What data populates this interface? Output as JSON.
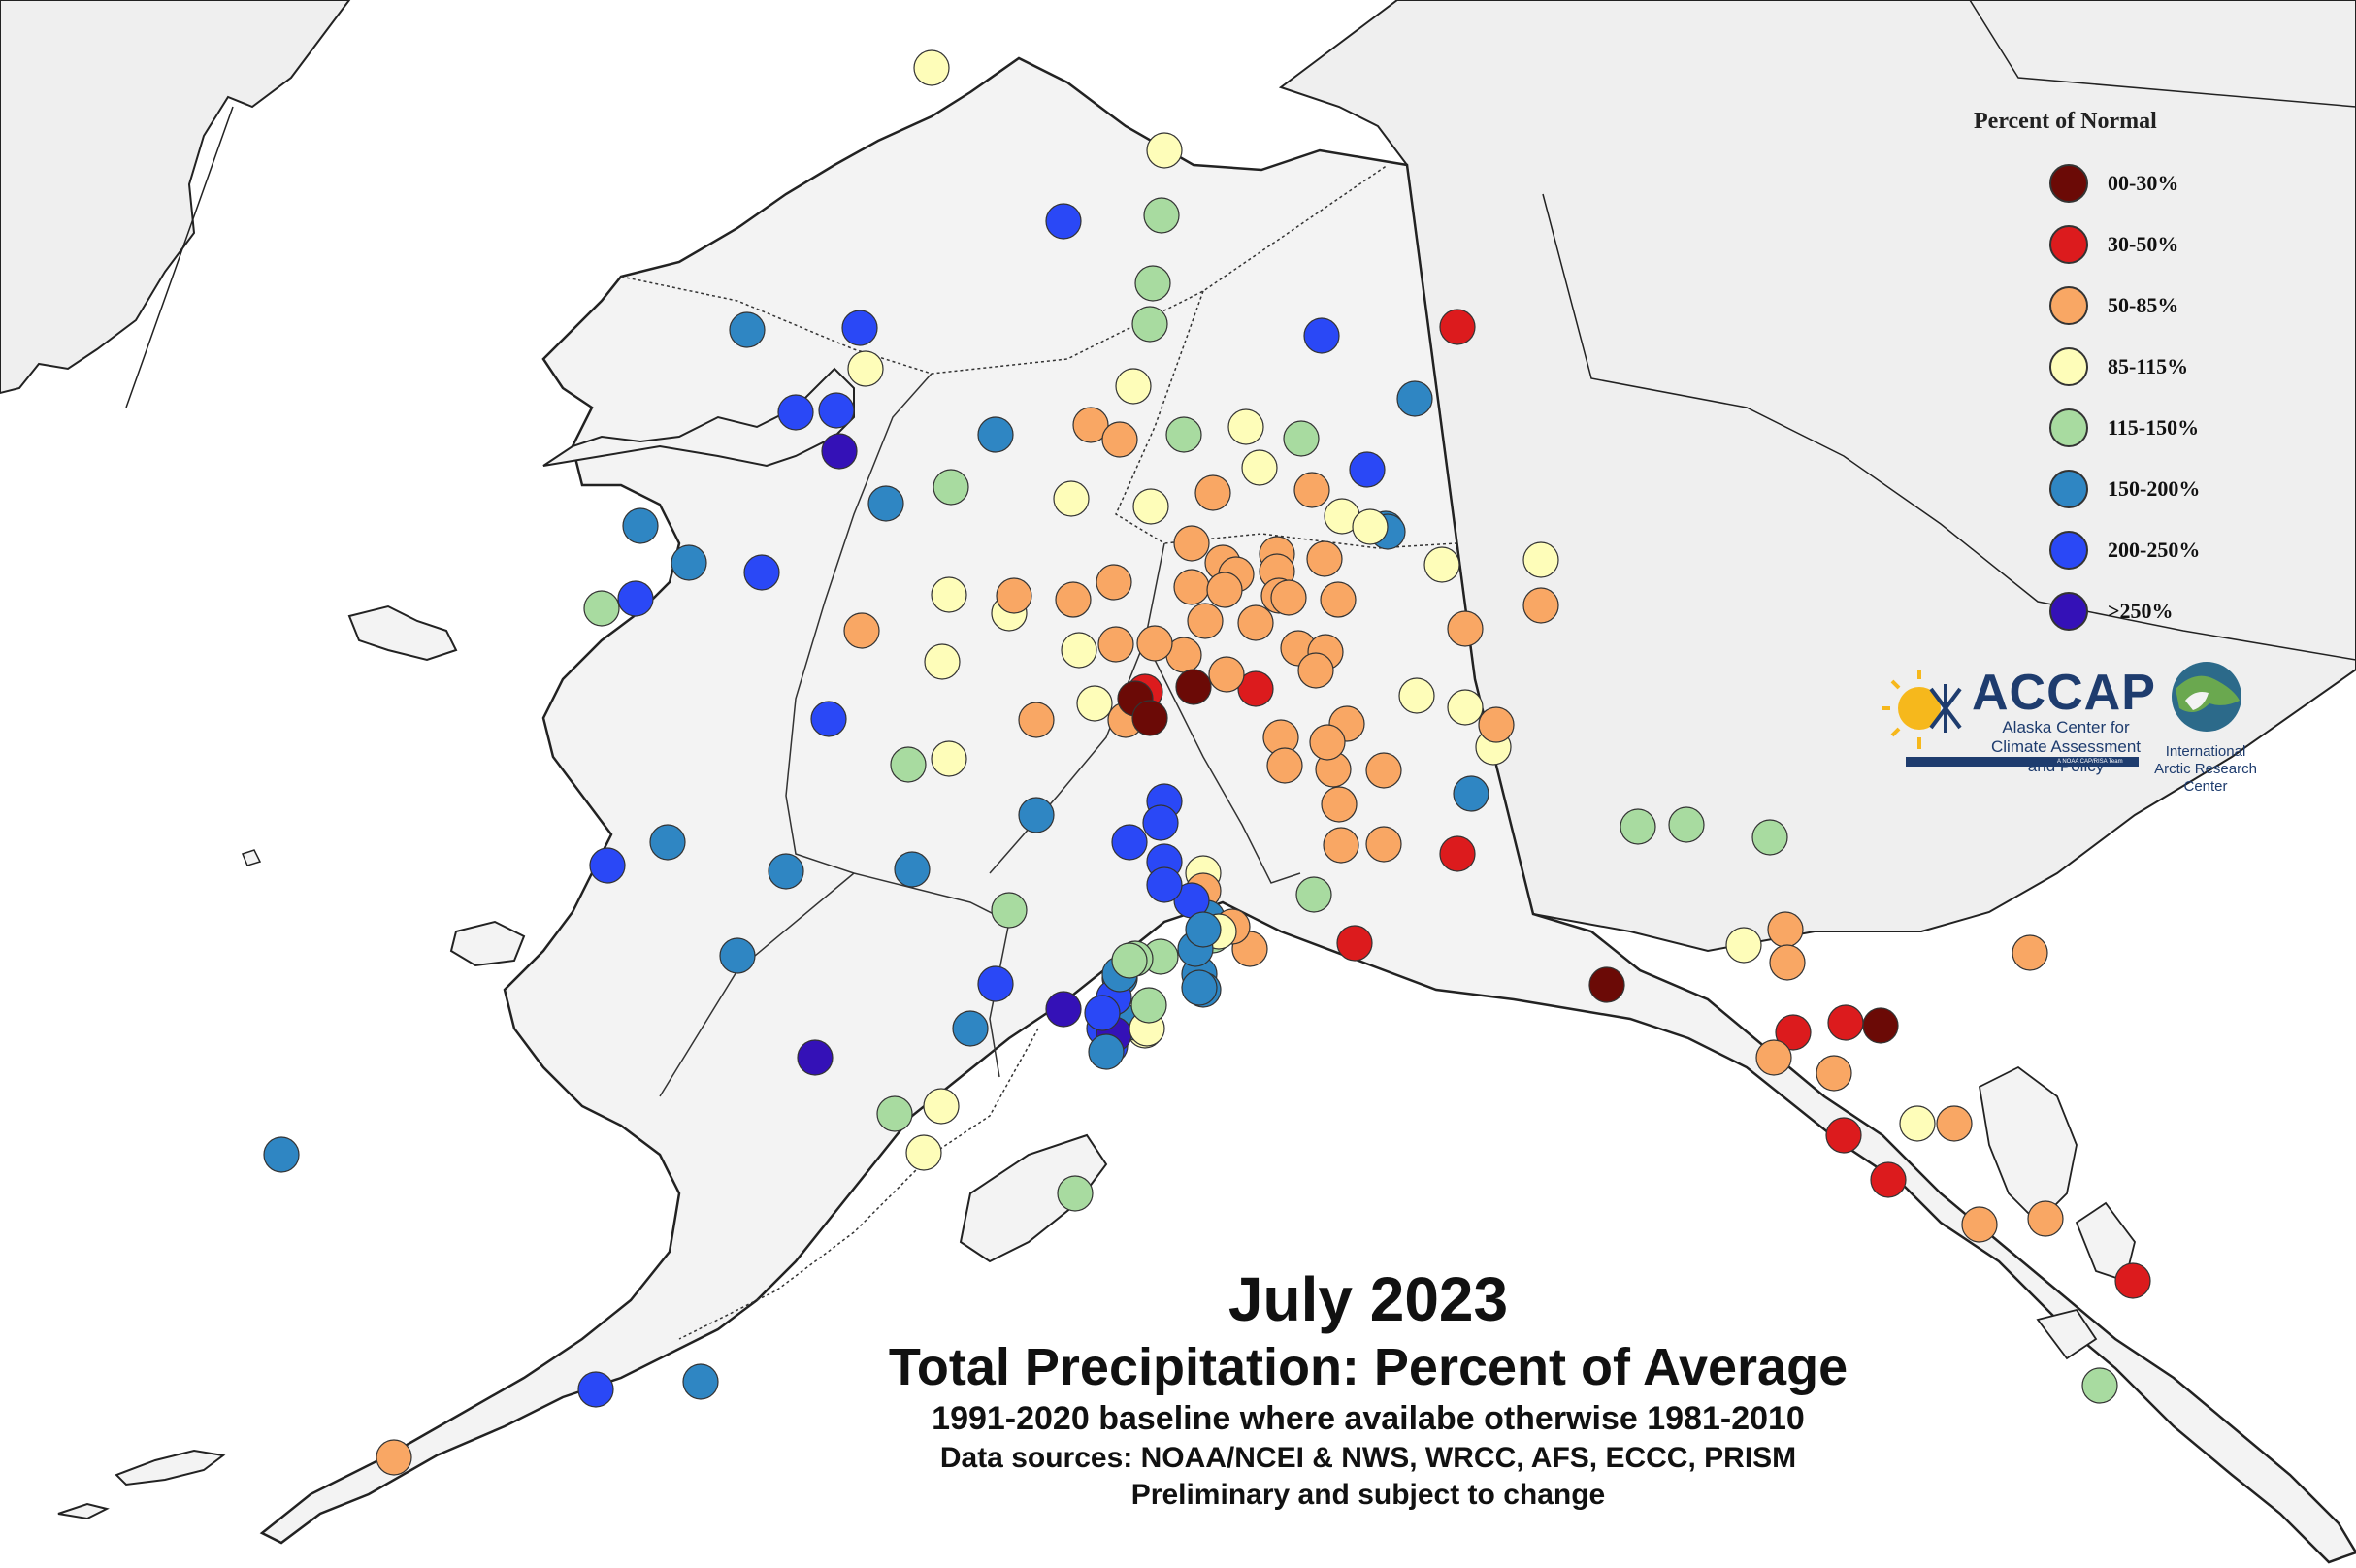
{
  "title": {
    "line1": "July 2023",
    "line2": "Total Precipitation: Percent of Average",
    "line3": "1991-2020 baseline where availabe otherwise 1981-2010",
    "line4": "Data sources: NOAA/NCEI & NWS, WRCC, AFS, ECCC, PRISM",
    "line5": "Preliminary and subject to change"
  },
  "legend": {
    "title": "Percent of Normal",
    "items": [
      {
        "label": "00-30%",
        "color": "#6b0a06"
      },
      {
        "label": "30-50%",
        "color": "#dc1b1d"
      },
      {
        "label": "50-85%",
        "color": "#f9a764"
      },
      {
        "label": "85-115%",
        "color": "#fefdb9"
      },
      {
        "label": "115-150%",
        "color": "#a8dba0"
      },
      {
        "label": "150-200%",
        "color": "#2f86c3"
      },
      {
        "label": "200-250%",
        "color": "#2a48f6"
      },
      {
        "label": ">250%",
        "color": "#3411b7"
      }
    ]
  },
  "logos": {
    "accap_name": "ACCAP",
    "accap_subtitle": "Alaska Center for Climate Assessment and Policy",
    "accap_tagline": "A NOAA CAP/RISA Team",
    "iarc_name": "International Arctic Research Center",
    "iarc_icon": "globe-icon",
    "accap_icon": "sun-snowflake-icon"
  },
  "map_style": {
    "land_color": "#f3f3f3",
    "neighbor_land_color": "#efefef",
    "ocean_color": "#ffffff",
    "border_color": "#222222"
  }
}
